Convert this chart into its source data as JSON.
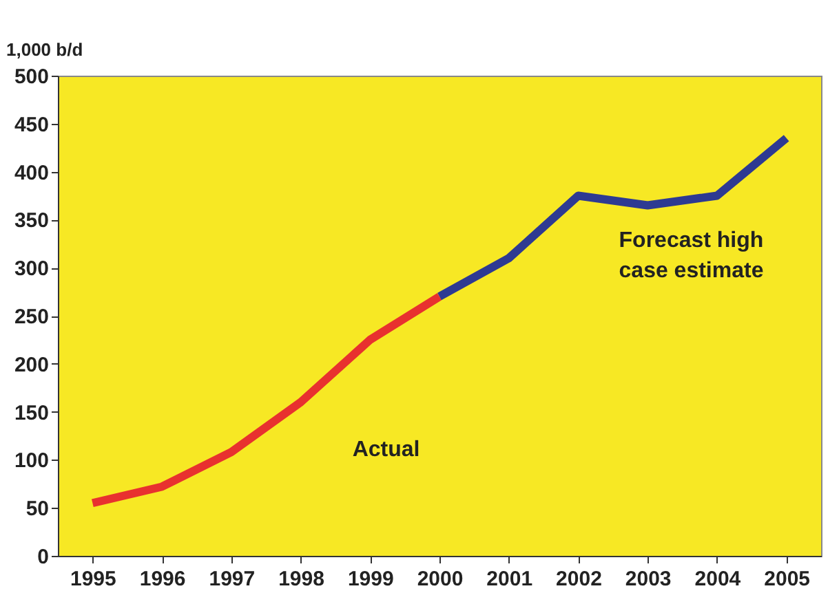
{
  "chart_data": {
    "type": "line",
    "ylabel": "1,000 b/d",
    "categories": [
      "1995",
      "1996",
      "1997",
      "1998",
      "1999",
      "2000",
      "2001",
      "2002",
      "2003",
      "2004",
      "2005"
    ],
    "series": [
      {
        "name": "Actual",
        "color": "#e8312f",
        "values": [
          55,
          72,
          108,
          160,
          225,
          270,
          null,
          null,
          null,
          null,
          null
        ]
      },
      {
        "name": "Forecast high case estimate",
        "color": "#2e3a92",
        "values": [
          null,
          null,
          null,
          null,
          null,
          270,
          310,
          375,
          365,
          375,
          435
        ]
      }
    ],
    "ylim": [
      0,
      500
    ],
    "yticks": [
      0,
      50,
      100,
      150,
      200,
      250,
      300,
      350,
      400,
      450,
      500
    ],
    "grid": false,
    "legend": false,
    "marker": "none",
    "line_style": "solid"
  }
}
